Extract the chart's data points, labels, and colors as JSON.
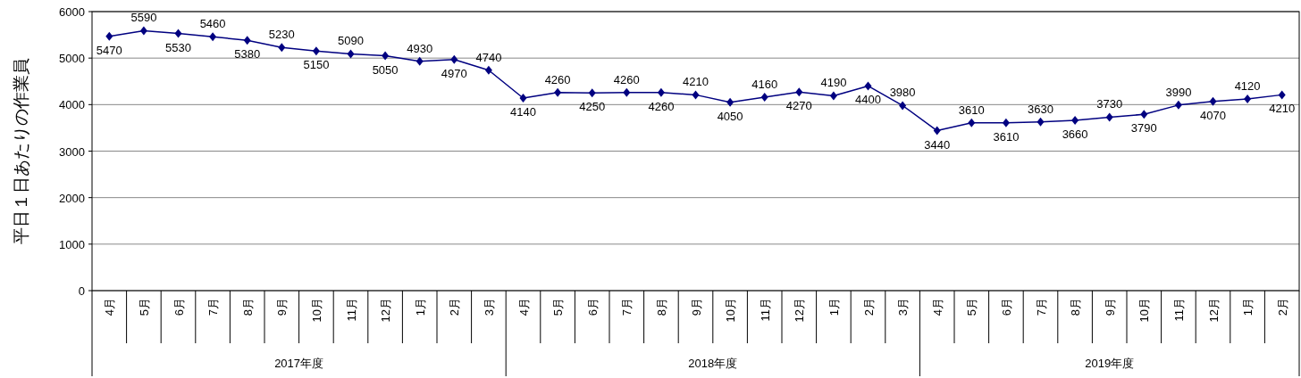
{
  "chart_data": {
    "type": "line",
    "ylabel": "平日１日あたりの作業員",
    "categories": [
      "4月",
      "5月",
      "6月",
      "7月",
      "8月",
      "9月",
      "10月",
      "11月",
      "12月",
      "1月",
      "2月",
      "3月",
      "4月",
      "5月",
      "6月",
      "7月",
      "8月",
      "9月",
      "10月",
      "11月",
      "12月",
      "1月",
      "2月",
      "3月",
      "4月",
      "5月",
      "6月",
      "7月",
      "8月",
      "9月",
      "10月",
      "11月",
      "12月",
      "1月",
      "2月"
    ],
    "series": [
      {
        "color": "#000080",
        "values": [
          5470,
          5590,
          5530,
          5460,
          5380,
          5230,
          5150,
          5090,
          5050,
          4930,
          4970,
          4740,
          4140,
          4260,
          4250,
          4260,
          4260,
          4210,
          4050,
          4160,
          4270,
          4190,
          4400,
          3980,
          3440,
          3610,
          3610,
          3630,
          3660,
          3730,
          3790,
          3990,
          4070,
          4120,
          4210
        ]
      }
    ],
    "ylim": [
      0,
      6000
    ],
    "yticks": [
      0,
      1000,
      2000,
      3000,
      4000,
      5000,
      6000
    ],
    "grid": "y",
    "data_labels": true,
    "marker": "diamond",
    "line_style": "solid",
    "annotations": [
      "2017年度",
      "2018年度",
      "2019年度"
    ]
  }
}
